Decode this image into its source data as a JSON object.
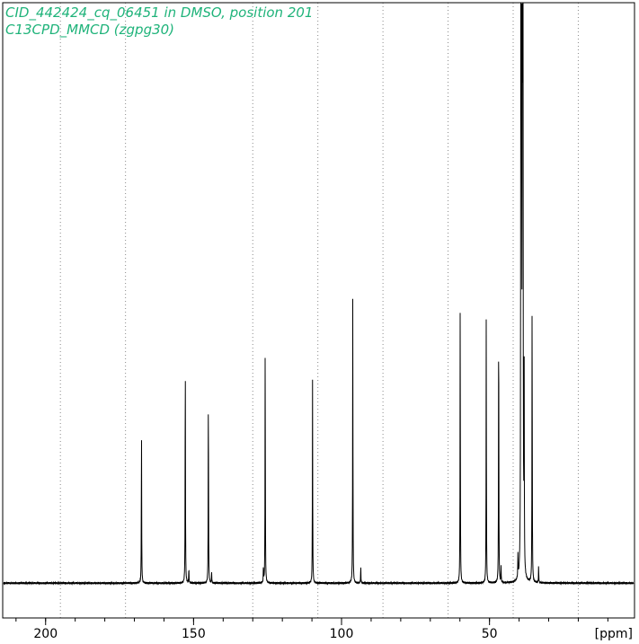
{
  "chart_data": {
    "type": "line",
    "title_lines": [
      "CID_442424_cq_06451 in DMSO, position 201",
      "C13CPD_MMCD (zgpg30)"
    ],
    "xlabel": "[ppm]",
    "x_reversed": true,
    "xlim": [
      214.5,
      1
    ],
    "ylim": [
      -0.06,
      1.0
    ],
    "x_ticks": [
      200,
      150,
      100,
      50
    ],
    "minor_tick_step": 10,
    "gridlines_x": [
      195,
      173,
      130,
      108,
      86,
      64,
      42,
      20
    ],
    "grid": "vertical-dotted",
    "peaks": [
      {
        "ppm": 167.6,
        "height": 0.277
      },
      {
        "ppm": 152.8,
        "height": 0.418
      },
      {
        "ppm": 151.6,
        "height": 0.027
      },
      {
        "ppm": 145.0,
        "height": 0.356
      },
      {
        "ppm": 143.9,
        "height": 0.019
      },
      {
        "ppm": 126.4,
        "height": 0.028
      },
      {
        "ppm": 125.8,
        "height": 0.432
      },
      {
        "ppm": 109.8,
        "height": 0.35
      },
      {
        "ppm": 96.2,
        "height": 0.501
      },
      {
        "ppm": 93.5,
        "height": 0.03
      },
      {
        "ppm": 59.9,
        "height": 0.506
      },
      {
        "ppm": 51.1,
        "height": 0.468
      },
      {
        "ppm": 46.9,
        "height": 0.507
      },
      {
        "ppm": 46.1,
        "height": 0.028
      },
      {
        "ppm": 40.4,
        "height": 0.04
      },
      {
        "ppm": 39.4,
        "height": 1.5
      },
      {
        "ppm": 39.2,
        "height": 1.5
      },
      {
        "ppm": 38.9,
        "height": 1.5
      },
      {
        "ppm": 38.7,
        "height": 1.5
      },
      {
        "ppm": 38.3,
        "height": 0.378
      },
      {
        "ppm": 35.6,
        "height": 0.518
      },
      {
        "ppm": 33.4,
        "height": 0.029
      }
    ],
    "colors": {
      "trace": "#000000",
      "title": "#1fb37a",
      "grid": "#8a8a8a",
      "axis": "#000000"
    }
  }
}
